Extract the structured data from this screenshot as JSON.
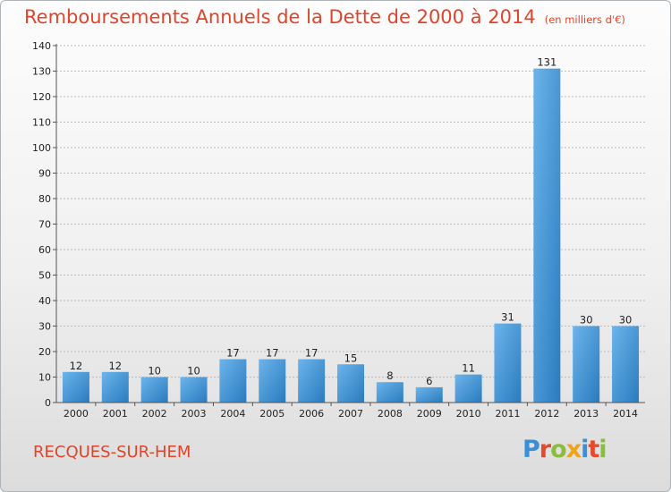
{
  "header": {
    "title": "Remboursements Annuels de la Dette de 2000 à 2014",
    "unit": "(en milliers d'€)"
  },
  "footer": {
    "commune": "RECQUES-SUR-HEM",
    "logo_letters": [
      "P",
      "r",
      "o",
      "x",
      "i",
      "t",
      "i"
    ],
    "logo_colors": [
      "#3b8fd6",
      "#e8492c",
      "#8bbd3a",
      "#f0a21d",
      "#3b8fd6",
      "#e8492c",
      "#8bbd3a"
    ]
  },
  "colors": {
    "bar_light": "#6cb4ec",
    "bar_dark": "#2a7bbd",
    "gridline": "#bbbbbb",
    "accent": "#e0442a"
  },
  "chart_data": {
    "type": "bar",
    "categories": [
      "2000",
      "2001",
      "2002",
      "2003",
      "2004",
      "2005",
      "2006",
      "2007",
      "2008",
      "2009",
      "2010",
      "2011",
      "2012",
      "2013",
      "2014"
    ],
    "values": [
      12,
      12,
      10,
      10,
      17,
      17,
      17,
      15,
      8,
      6,
      11,
      31,
      131,
      30,
      30
    ],
    "title": "Remboursements Annuels de la Dette de 2000 à 2014",
    "xlabel": "",
    "ylabel": "",
    "ylim": [
      0,
      140
    ],
    "yticks": [
      0,
      10,
      20,
      30,
      40,
      50,
      60,
      70,
      80,
      90,
      100,
      110,
      120,
      130,
      140
    ],
    "grid": true,
    "data_labels": true
  }
}
